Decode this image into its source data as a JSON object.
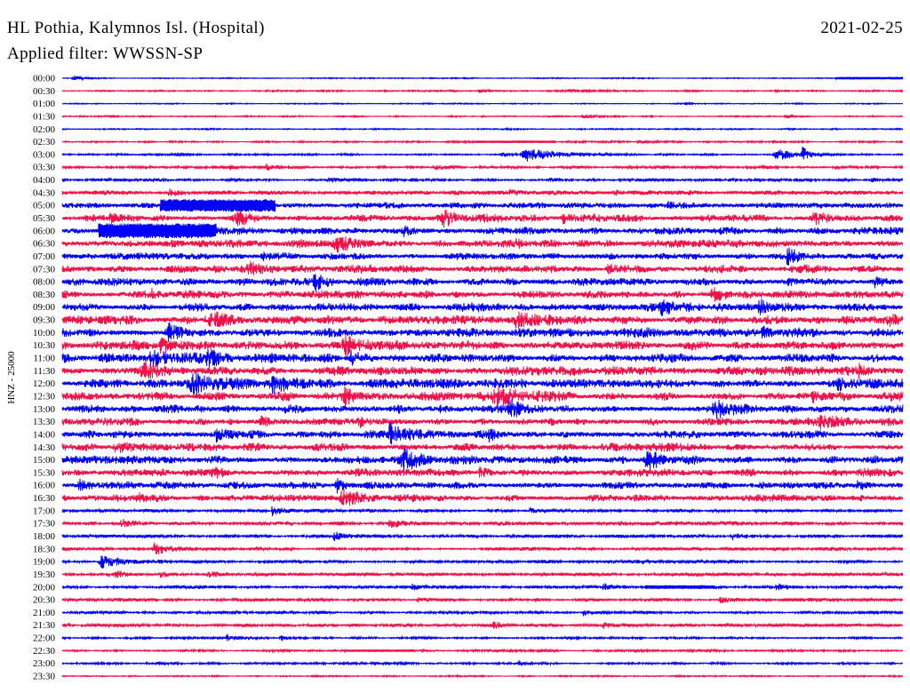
{
  "chart_data": {
    "type": "line",
    "title": "HL Pothia, Kalymnos Isl. (Hospital)",
    "date": "2021-02-25",
    "subtitle": "Applied filter: WWSSN-SP",
    "ylabel": "HNZ - 25000",
    "x_range_minutes": [
      0,
      30
    ],
    "series_colors": [
      "#0000ff",
      "#f2124a"
    ],
    "rows": [
      {
        "label": "00:00",
        "noise": 0.07,
        "events": [
          {
            "min": 0.4,
            "dur": 0.4,
            "amp": 0.45
          },
          {
            "min": 27.6,
            "dur": 2.4,
            "amp": 0.2,
            "sustained": true
          }
        ]
      },
      {
        "label": "00:30",
        "noise": 0.1,
        "events": [
          {
            "min": 14.9,
            "dur": 0.5,
            "amp": 0.3
          },
          {
            "min": 18.1,
            "dur": 0.8,
            "amp": 0.2
          }
        ]
      },
      {
        "label": "01:00",
        "noise": 0.07,
        "events": [
          {
            "min": 22.2,
            "dur": 0.2,
            "amp": 0.3
          }
        ]
      },
      {
        "label": "01:30",
        "noise": 0.09,
        "events": [
          {
            "min": 18.6,
            "dur": 0.6,
            "amp": 0.3
          },
          {
            "min": 25.8,
            "dur": 0.4,
            "amp": 0.45
          }
        ]
      },
      {
        "label": "02:00",
        "noise": 0.09,
        "events": []
      },
      {
        "label": "02:30",
        "noise": 0.11,
        "events": [
          {
            "min": 14.7,
            "dur": 2.9,
            "amp": 0.2,
            "sustained": true
          },
          {
            "min": 20.6,
            "dur": 0.8,
            "amp": 0.3
          }
        ]
      },
      {
        "label": "03:00",
        "noise": 0.11,
        "events": [
          {
            "min": 4.1,
            "dur": 0.6,
            "amp": 0.3
          },
          {
            "min": 15.7,
            "dur": 0.5,
            "amp": 0.3
          },
          {
            "min": 16.6,
            "dur": 1.9,
            "amp": 1.0
          },
          {
            "min": 25.5,
            "dur": 1.1,
            "amp": 0.9
          },
          {
            "min": 26.4,
            "dur": 0.3,
            "amp": 1.4
          }
        ]
      },
      {
        "label": "03:30",
        "noise": 0.17,
        "events": [
          {
            "min": 6.0,
            "dur": 0.4,
            "amp": 0.45
          },
          {
            "min": 7.3,
            "dur": 0.5,
            "amp": 0.5
          },
          {
            "min": 13.3,
            "dur": 0.5,
            "amp": 0.4
          },
          {
            "min": 25.0,
            "dur": 0.4,
            "amp": 0.3
          }
        ]
      },
      {
        "label": "04:00",
        "noise": 0.17,
        "events": [
          {
            "min": 9.5,
            "dur": 0.5,
            "amp": 0.4
          },
          {
            "min": 17.4,
            "dur": 0.4,
            "amp": 0.3
          },
          {
            "min": 28.9,
            "dur": 0.4,
            "amp": 0.3
          }
        ]
      },
      {
        "label": "04:30",
        "noise": 0.29,
        "events": [
          {
            "min": 3.8,
            "dur": 0.6,
            "amp": 0.6
          },
          {
            "min": 16.0,
            "dur": 0.5,
            "amp": 0.5
          },
          {
            "min": 19.7,
            "dur": 0.5,
            "amp": 0.45
          }
        ]
      },
      {
        "label": "05:00",
        "noise": 0.36,
        "events": [
          {
            "min": 3.5,
            "dur": 4.1,
            "amp": 1.0,
            "sustained": true
          },
          {
            "min": 21.6,
            "dur": 0.5,
            "amp": 0.5
          }
        ]
      },
      {
        "label": "05:30",
        "noise": 0.43,
        "events": [
          {
            "min": 1.7,
            "dur": 0.5,
            "amp": 0.6
          },
          {
            "min": 6.2,
            "dur": 1.2,
            "amp": 0.9
          },
          {
            "min": 13.6,
            "dur": 1.0,
            "amp": 1.1
          },
          {
            "min": 17.9,
            "dur": 0.8,
            "amp": 0.8
          },
          {
            "min": 26.8,
            "dur": 0.8,
            "amp": 0.8
          }
        ]
      },
      {
        "label": "06:00",
        "noise": 0.43,
        "events": [
          {
            "min": 1.3,
            "dur": 4.2,
            "amp": 1.2,
            "sustained": true
          },
          {
            "min": 12.2,
            "dur": 0.6,
            "amp": 0.6
          }
        ]
      },
      {
        "label": "06:30",
        "noise": 0.5,
        "events": [
          {
            "min": 9.8,
            "dur": 1.0,
            "amp": 0.9
          },
          {
            "min": 16.2,
            "dur": 0.6,
            "amp": 0.6
          }
        ]
      },
      {
        "label": "07:00",
        "noise": 0.43,
        "events": [
          {
            "min": 7.1,
            "dur": 0.6,
            "amp": 0.6
          },
          {
            "min": 25.9,
            "dur": 0.7,
            "amp": 1.2
          }
        ]
      },
      {
        "label": "07:30",
        "noise": 0.5,
        "events": [
          {
            "min": 6.7,
            "dur": 1.0,
            "amp": 0.8
          },
          {
            "min": 19.5,
            "dur": 0.8,
            "amp": 0.8
          }
        ]
      },
      {
        "label": "08:00",
        "noise": 0.5,
        "events": [
          {
            "min": 9.0,
            "dur": 0.6,
            "amp": 1.2
          },
          {
            "min": 29.0,
            "dur": 0.5,
            "amp": 0.7
          }
        ]
      },
      {
        "label": "08:30",
        "noise": 0.5,
        "events": [
          {
            "min": 3.2,
            "dur": 0.6,
            "amp": 0.6
          },
          {
            "min": 23.2,
            "dur": 0.8,
            "amp": 0.9
          }
        ]
      },
      {
        "label": "09:00",
        "noise": 0.5,
        "events": [
          {
            "min": 14.3,
            "dur": 0.6,
            "amp": 0.7
          },
          {
            "min": 21.4,
            "dur": 1.0,
            "amp": 1.1
          },
          {
            "min": 24.9,
            "dur": 0.6,
            "amp": 1.1
          }
        ]
      },
      {
        "label": "09:30",
        "noise": 0.57,
        "events": [
          {
            "min": 5.2,
            "dur": 1.0,
            "amp": 0.9
          },
          {
            "min": 16.2,
            "dur": 1.0,
            "amp": 0.9
          },
          {
            "min": 29.5,
            "dur": 0.5,
            "amp": 0.9
          }
        ]
      },
      {
        "label": "10:00",
        "noise": 0.57,
        "events": [
          {
            "min": 3.8,
            "dur": 1.0,
            "amp": 1.2
          },
          {
            "min": 25.0,
            "dur": 0.6,
            "amp": 0.8
          }
        ]
      },
      {
        "label": "10:30",
        "noise": 0.57,
        "events": [
          {
            "min": 3.5,
            "dur": 0.8,
            "amp": 1.3
          },
          {
            "min": 10.1,
            "dur": 0.8,
            "amp": 1.8
          }
        ]
      },
      {
        "label": "11:00",
        "noise": 0.57,
        "events": [
          {
            "min": 3.2,
            "dur": 1.2,
            "amp": 1.2
          },
          {
            "min": 5.2,
            "dur": 0.6,
            "amp": 1.0
          },
          {
            "min": 10.3,
            "dur": 0.6,
            "amp": 0.9
          }
        ]
      },
      {
        "label": "11:30",
        "noise": 0.57,
        "events": [
          {
            "min": 2.9,
            "dur": 1.0,
            "amp": 1.1
          },
          {
            "min": 28.4,
            "dur": 0.6,
            "amp": 0.9
          }
        ]
      },
      {
        "label": "12:00",
        "noise": 0.57,
        "events": [
          {
            "min": 4.6,
            "dur": 1.3,
            "amp": 1.8
          },
          {
            "min": 7.5,
            "dur": 1.0,
            "amp": 1.1
          },
          {
            "min": 27.7,
            "dur": 0.6,
            "amp": 1.0
          }
        ]
      },
      {
        "label": "12:30",
        "noise": 0.57,
        "events": [
          {
            "min": 10.1,
            "dur": 0.8,
            "amp": 1.2
          },
          {
            "min": 15.5,
            "dur": 1.5,
            "amp": 1.2
          },
          {
            "min": 26.8,
            "dur": 0.6,
            "amp": 0.9
          }
        ]
      },
      {
        "label": "13:00",
        "noise": 0.5,
        "events": [
          {
            "min": 16.0,
            "dur": 0.9,
            "amp": 1.3
          },
          {
            "min": 23.3,
            "dur": 1.0,
            "amp": 1.0
          }
        ]
      },
      {
        "label": "13:30",
        "noise": 0.5,
        "events": [
          {
            "min": 7.1,
            "dur": 0.6,
            "amp": 0.9
          },
          {
            "min": 10.6,
            "dur": 0.6,
            "amp": 0.9
          },
          {
            "min": 27.1,
            "dur": 1.0,
            "amp": 1.1
          }
        ]
      },
      {
        "label": "14:00",
        "noise": 0.5,
        "events": [
          {
            "min": 5.5,
            "dur": 0.7,
            "amp": 1.1
          },
          {
            "min": 11.7,
            "dur": 0.8,
            "amp": 1.4
          },
          {
            "min": 15.2,
            "dur": 0.6,
            "amp": 0.9
          }
        ]
      },
      {
        "label": "14:30",
        "noise": 0.5,
        "events": [
          {
            "min": 1.9,
            "dur": 0.6,
            "amp": 1.1
          }
        ]
      },
      {
        "label": "15:00",
        "noise": 0.5,
        "events": [
          {
            "min": 12.2,
            "dur": 1.0,
            "amp": 1.4
          },
          {
            "min": 20.9,
            "dur": 1.0,
            "amp": 1.3
          }
        ]
      },
      {
        "label": "15:30",
        "noise": 0.5,
        "events": [
          {
            "min": 5.4,
            "dur": 0.6,
            "amp": 0.8
          },
          {
            "min": 14.9,
            "dur": 0.6,
            "amp": 0.8
          }
        ]
      },
      {
        "label": "16:00",
        "noise": 0.43,
        "events": [
          {
            "min": 0.6,
            "dur": 0.6,
            "amp": 1.0
          },
          {
            "min": 9.8,
            "dur": 0.6,
            "amp": 1.1
          },
          {
            "min": 28.4,
            "dur": 0.6,
            "amp": 0.9
          }
        ]
      },
      {
        "label": "16:30",
        "noise": 0.43,
        "events": [
          {
            "min": 2.7,
            "dur": 0.5,
            "amp": 0.8
          },
          {
            "min": 10.0,
            "dur": 1.0,
            "amp": 1.1
          }
        ]
      },
      {
        "label": "17:00",
        "noise": 0.21,
        "events": [
          {
            "min": 7.5,
            "dur": 0.4,
            "amp": 0.9
          },
          {
            "min": 16.7,
            "dur": 0.4,
            "amp": 0.5
          }
        ]
      },
      {
        "label": "17:30",
        "noise": 0.26,
        "events": [
          {
            "min": 2.1,
            "dur": 0.4,
            "amp": 0.6
          },
          {
            "min": 11.7,
            "dur": 0.5,
            "amp": 0.7
          }
        ]
      },
      {
        "label": "18:00",
        "noise": 0.21,
        "events": [
          {
            "min": 9.7,
            "dur": 0.4,
            "amp": 0.7
          },
          {
            "min": 23.9,
            "dur": 0.5,
            "amp": 0.6
          }
        ]
      },
      {
        "label": "18:30",
        "noise": 0.21,
        "events": [
          {
            "min": 3.3,
            "dur": 0.8,
            "amp": 0.9
          }
        ]
      },
      {
        "label": "19:00",
        "noise": 0.21,
        "events": [
          {
            "min": 1.4,
            "dur": 1.0,
            "amp": 1.1
          }
        ]
      },
      {
        "label": "19:30",
        "noise": 0.21,
        "events": [
          {
            "min": 1.9,
            "dur": 0.4,
            "amp": 0.5
          },
          {
            "min": 3.5,
            "dur": 0.4,
            "amp": 0.6
          },
          {
            "min": 5.2,
            "dur": 0.4,
            "amp": 0.6
          }
        ]
      },
      {
        "label": "20:00",
        "noise": 0.21,
        "events": [
          {
            "min": 12.5,
            "dur": 0.4,
            "amp": 0.5
          },
          {
            "min": 19.3,
            "dur": 0.4,
            "amp": 0.6
          },
          {
            "min": 20.8,
            "dur": 2.5,
            "amp": 0.3,
            "sustained": true
          },
          {
            "min": 25.5,
            "dur": 0.4,
            "amp": 0.6
          }
        ]
      },
      {
        "label": "20:30",
        "noise": 0.21,
        "events": [
          {
            "min": 12.7,
            "dur": 0.4,
            "amp": 0.5
          },
          {
            "min": 23.5,
            "dur": 0.4,
            "amp": 0.6
          }
        ]
      },
      {
        "label": "21:00",
        "noise": 0.17,
        "events": [
          {
            "min": 18.6,
            "dur": 0.4,
            "amp": 0.5
          }
        ]
      },
      {
        "label": "21:30",
        "noise": 0.21,
        "events": [
          {
            "min": 15.4,
            "dur": 0.4,
            "amp": 0.5
          },
          {
            "min": 19.3,
            "dur": 0.4,
            "amp": 0.5
          }
        ]
      },
      {
        "label": "22:00",
        "noise": 0.14,
        "events": [
          {
            "min": 5.9,
            "dur": 0.5,
            "amp": 0.6
          },
          {
            "min": 7.8,
            "dur": 0.4,
            "amp": 0.6
          }
        ]
      },
      {
        "label": "22:30",
        "noise": 0.14,
        "events": [
          {
            "min": 10.1,
            "dur": 2.5,
            "amp": 0.2,
            "sustained": true
          }
        ]
      },
      {
        "label": "23:00",
        "noise": 0.14,
        "events": [
          {
            "min": 3.4,
            "dur": 0.4,
            "amp": 0.3
          },
          {
            "min": 16.3,
            "dur": 0.4,
            "amp": 0.5
          }
        ]
      },
      {
        "label": "23:30",
        "noise": 0.09,
        "events": []
      }
    ]
  }
}
